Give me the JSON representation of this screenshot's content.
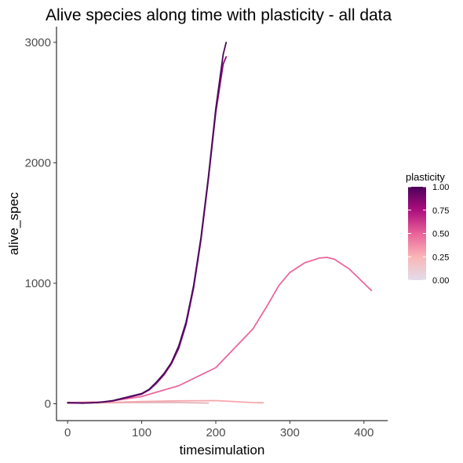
{
  "chart_data": {
    "type": "line",
    "title": "Alive species along time with plasticity - all data",
    "xlabel": "timesimulation",
    "ylabel": "alive_spec",
    "xlim": [
      -15,
      432
    ],
    "ylim": [
      -140,
      3130
    ],
    "x_ticks": [
      0,
      100,
      200,
      300,
      400
    ],
    "x_tick_labels": [
      "0",
      "100",
      "200",
      "300",
      "400"
    ],
    "y_ticks": [
      0,
      1000,
      2000,
      3000
    ],
    "y_tick_labels": [
      "0",
      "1000",
      "2000",
      "3000"
    ],
    "grid": false,
    "legend": {
      "title": "plasticity",
      "placement": "right",
      "type": "colorbar",
      "range": [
        0,
        1
      ],
      "ticks": [
        0.0,
        0.25,
        0.5,
        0.75,
        1.0
      ],
      "tick_labels": [
        "0.00",
        "0.25",
        "0.50",
        "0.75",
        "1.00"
      ],
      "colors": [
        "#e3dcea",
        "#f9b6b6",
        "#e9629a",
        "#ad0e7d",
        "#4d005b"
      ]
    },
    "series": [
      {
        "plasticity": 1.0,
        "color": "#4a0a5a",
        "x": [
          0,
          20,
          40,
          60,
          80,
          100,
          110,
          120,
          130,
          140,
          150,
          160,
          170,
          180,
          190,
          200,
          210,
          214
        ],
        "y": [
          10,
          5,
          10,
          25,
          55,
          85,
          120,
          180,
          250,
          340,
          480,
          680,
          980,
          1380,
          1880,
          2450,
          2900,
          3000
        ]
      },
      {
        "plasticity": 0.85,
        "color": "#8a0f7e",
        "x": [
          0,
          20,
          40,
          60,
          80,
          100,
          110,
          120,
          130,
          140,
          150,
          160,
          170,
          180,
          190,
          200,
          210,
          214
        ],
        "y": [
          8,
          5,
          10,
          22,
          50,
          80,
          115,
          170,
          240,
          330,
          460,
          660,
          960,
          1360,
          1860,
          2420,
          2820,
          2880
        ]
      },
      {
        "plasticity": 0.5,
        "color": "#ea679d",
        "x": [
          0,
          50,
          100,
          150,
          200,
          250,
          270,
          285,
          300,
          320,
          340,
          350,
          360,
          380,
          400,
          410
        ],
        "y": [
          10,
          15,
          60,
          150,
          300,
          620,
          820,
          980,
          1090,
          1170,
          1210,
          1215,
          1200,
          1120,
          1000,
          940
        ]
      },
      {
        "plasticity": 0.25,
        "color": "#f5a7ad",
        "x": [
          0,
          50,
          100,
          150,
          200,
          250,
          264
        ],
        "y": [
          5,
          10,
          18,
          24,
          26,
          10,
          8
        ]
      },
      {
        "plasticity": 0.15,
        "color": "#e2b4bd",
        "x": [
          0,
          50,
          100,
          150,
          190
        ],
        "y": [
          5,
          8,
          10,
          10,
          6
        ]
      }
    ]
  }
}
